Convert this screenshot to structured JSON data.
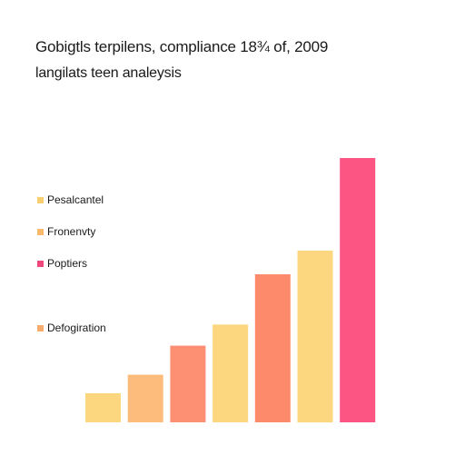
{
  "chart_data": {
    "type": "bar",
    "title": "Gobigtls terpilens, compliance 18¾ of, 2009",
    "subtitle": "langilats teen analeysis",
    "xlabel": "",
    "ylabel": "",
    "grid": false,
    "legend_position": "left",
    "legend": [
      {
        "label": "Pesalcantel",
        "color": "#f7cf6e"
      },
      {
        "label": "Fronenvty",
        "color": "#f9b86a"
      },
      {
        "label": "Poptiers",
        "color": "#f0487c"
      },
      {
        "label": "Defogiration",
        "color": "#f8ad6e"
      }
    ],
    "values": [
      11,
      18,
      29,
      37,
      56,
      65,
      100
    ],
    "bar_colors": [
      "#fdd77f",
      "#fdbc7c",
      "#fd9072",
      "#fdd77f",
      "#fd8a6a",
      "#fdd77f",
      "#fc5583"
    ],
    "ylim": [
      0,
      100
    ]
  }
}
